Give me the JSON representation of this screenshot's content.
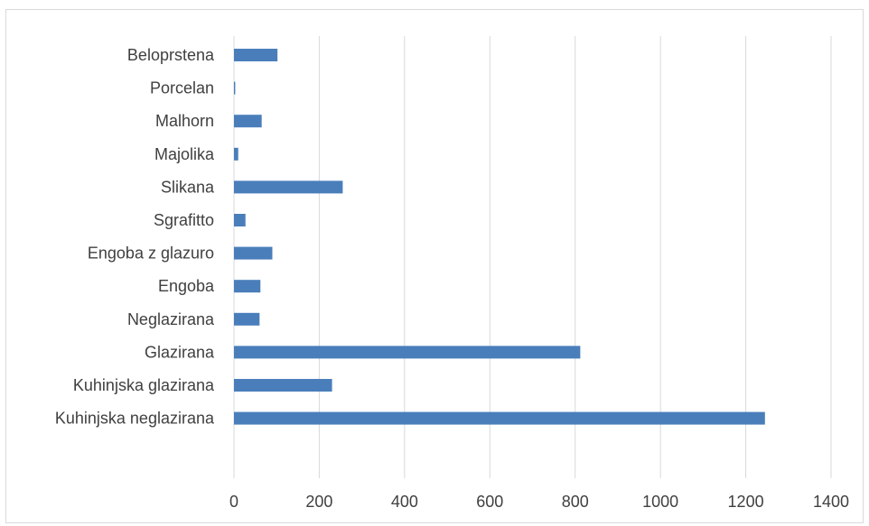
{
  "chart_data": {
    "type": "bar",
    "orientation": "horizontal",
    "categories": [
      "Kuhinjska neglazirana",
      "Kuhinjska glazirana",
      "Glazirana",
      "Neglazirana",
      "Engoba",
      "Engoba z glazuro",
      "Sgrafitto",
      "Slikana",
      "Majolika",
      "Malhorn",
      "Porcelan",
      "Beloprstena"
    ],
    "values": [
      1245,
      230,
      812,
      60,
      62,
      90,
      27,
      255,
      10,
      65,
      3,
      102
    ],
    "xlim": [
      0,
      1400
    ],
    "xticks": [
      "0",
      "200",
      "400",
      "600",
      "800",
      "1000",
      "1200",
      "1400"
    ],
    "grid": true,
    "legend": "none",
    "bar_color": "#4a7ebb",
    "grid_color": "#d9d9d9",
    "text_color": "#404040"
  }
}
